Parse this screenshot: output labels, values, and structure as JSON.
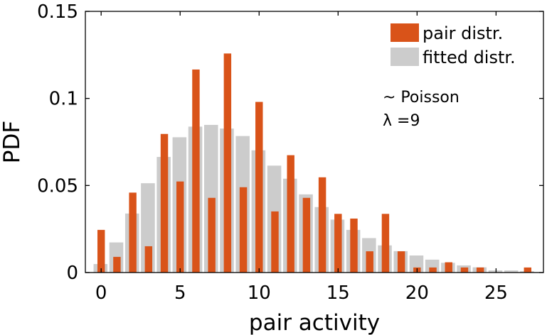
{
  "chart_data": {
    "type": "bar",
    "xlabel": "pair activity",
    "ylabel": "PDF",
    "xlim": [
      -1,
      28
    ],
    "ylim": [
      0,
      0.15
    ],
    "x_ticks": [
      "0",
      "5",
      "10",
      "15",
      "20",
      "25"
    ],
    "y_ticks": [
      "0",
      "0.05",
      "0.1",
      "0.15"
    ],
    "legend_position": "top-right",
    "annotation": [
      "~ Poisson",
      "λ =9"
    ],
    "colors": {
      "pair": "#d95319",
      "fitted": "#cccccc",
      "axis": "#000000"
    },
    "series": [
      {
        "name": "fitted distr.",
        "x": [
          0,
          1,
          2,
          3,
          4,
          5,
          6,
          7,
          8,
          9,
          10,
          11,
          12,
          13,
          14,
          15,
          16,
          17,
          18,
          19,
          20,
          21,
          22,
          23,
          24,
          25,
          26,
          27
        ],
        "values": [
          0.0049,
          0.0173,
          0.0339,
          0.0513,
          0.0664,
          0.0777,
          0.0838,
          0.0848,
          0.0827,
          0.0784,
          0.0702,
          0.0614,
          0.0539,
          0.0449,
          0.0376,
          0.0304,
          0.0245,
          0.0198,
          0.0156,
          0.0123,
          0.0098,
          0.0074,
          0.0056,
          0.0041,
          0.003,
          0.0012,
          0.0012,
          0.0008
        ]
      },
      {
        "name": "pair distr.",
        "x": [
          0,
          1,
          2,
          3,
          4,
          5,
          6,
          7,
          8,
          9,
          10,
          11,
          12,
          13,
          14,
          15,
          16,
          17,
          18,
          19,
          20,
          21,
          22,
          23,
          24,
          25,
          26,
          27
        ],
        "values": [
          0.0245,
          0.009,
          0.0459,
          0.0151,
          0.0796,
          0.0523,
          0.1166,
          0.0429,
          0.1258,
          0.049,
          0.098,
          0.0351,
          0.0674,
          0.0429,
          0.0547,
          0.0337,
          0.031,
          0.0122,
          0.0337,
          0.0122,
          0.0029,
          0.0029,
          0.0059,
          0.0029,
          0.0029,
          0.0,
          0.0,
          0.0029
        ]
      }
    ]
  }
}
